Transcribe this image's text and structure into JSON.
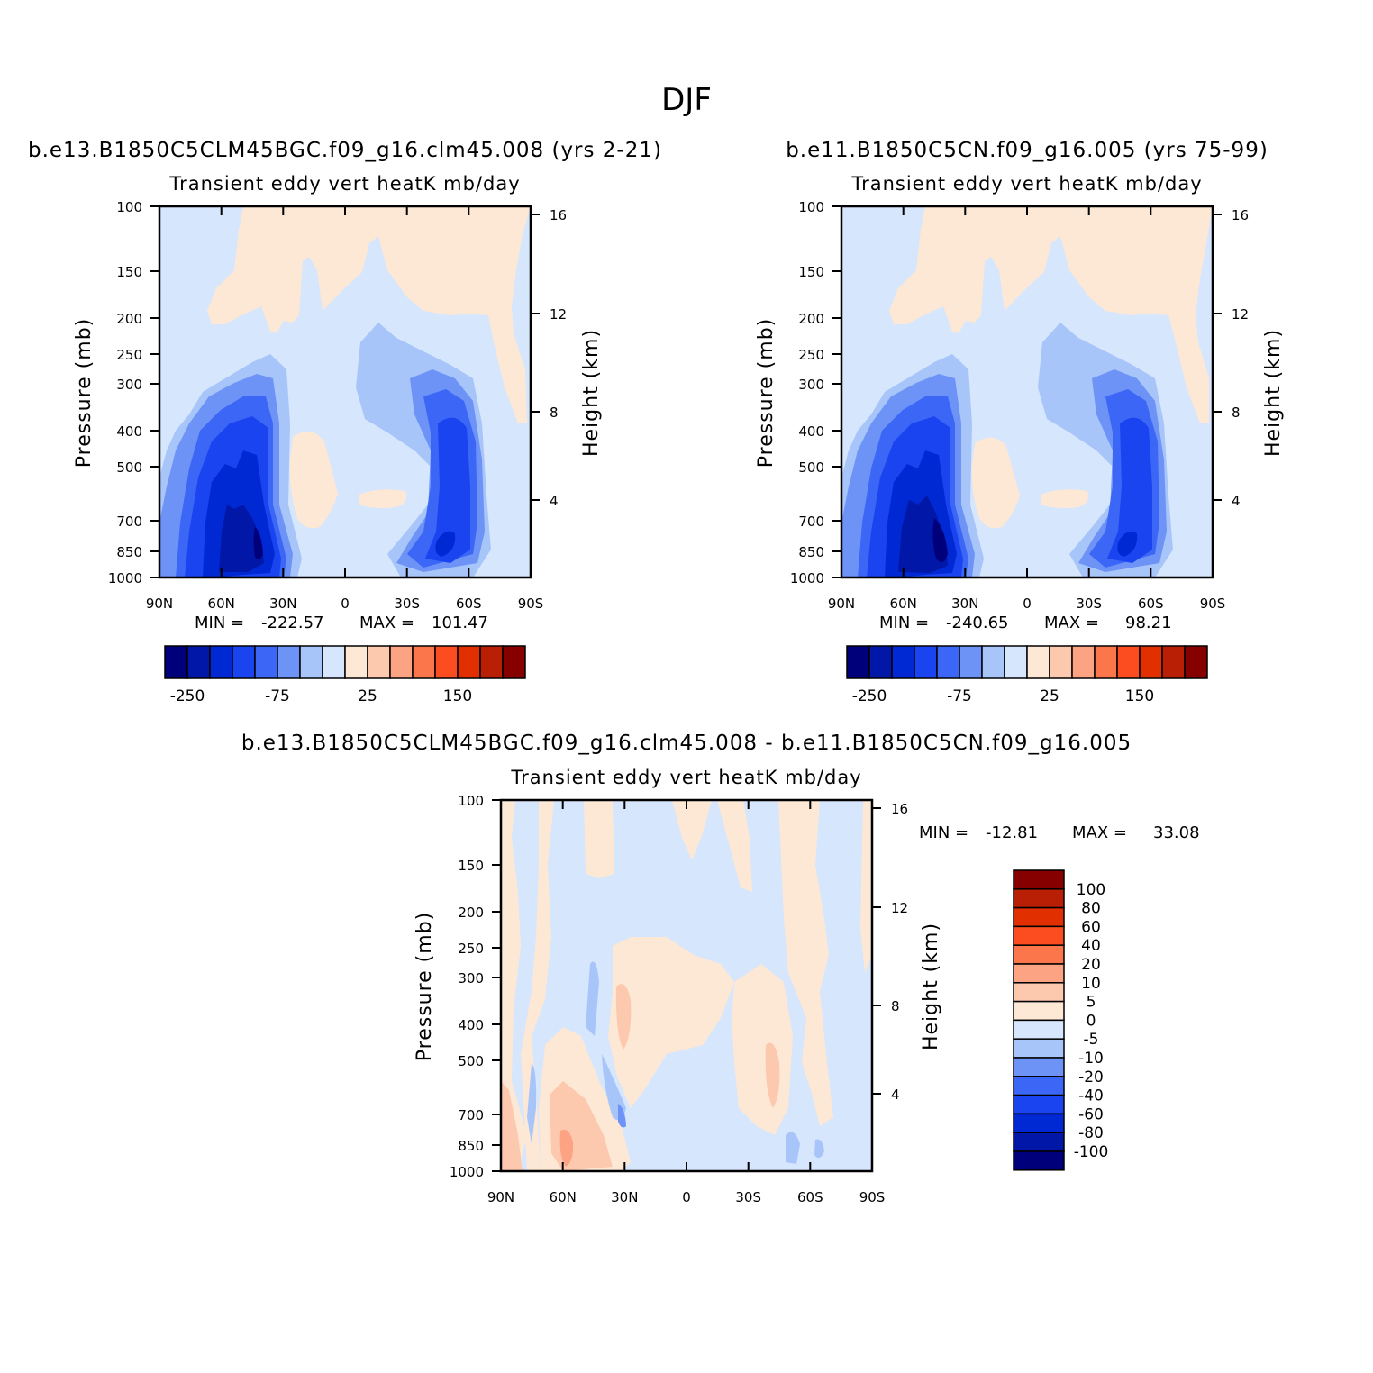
{
  "title": "DJF",
  "palette": {
    "neg": [
      "#00007a",
      "#0017a8",
      "#0029d4",
      "#1a44f0",
      "#3c66f5",
      "#6d93f7",
      "#a8c5fa",
      "#d5e6fd"
    ],
    "pos": [
      "#fde8d6",
      "#fcc9ae",
      "#fba383",
      "#fb774b",
      "#fb4d1f",
      "#e22f00",
      "#b81f05",
      "#860000"
    ]
  },
  "chart_data": [
    {
      "id": "panel1",
      "type": "heatmap",
      "subtitle": "b.e13.B1850C5CLM45BGC.f09_g16.clm45.008 (yrs 2-21)",
      "variable": "Transient eddy vert heatK mb/day",
      "ylabel": "Pressure (mb)",
      "y2label": "Height (km)",
      "xticks": [
        "90N",
        "60N",
        "30N",
        "0",
        "30S",
        "60S",
        "90S"
      ],
      "yticks": [
        "100",
        "150",
        "200",
        "250",
        "300",
        "400",
        "500",
        "700",
        "850",
        "1000"
      ],
      "y2ticks": [
        "16",
        "12",
        "8",
        "4"
      ],
      "min_label": "MIN =",
      "min_value": "-222.57",
      "max_label": "MAX =",
      "max_value": "101.47",
      "colorbar_labels": [
        "-250",
        "-75",
        "25",
        "150"
      ]
    },
    {
      "id": "panel2",
      "type": "heatmap",
      "subtitle": "b.e11.B1850C5CN.f09_g16.005 (yrs 75-99)",
      "variable": "Transient eddy vert heatK mb/day",
      "ylabel": "Pressure (mb)",
      "y2label": "Height (km)",
      "xticks": [
        "90N",
        "60N",
        "30N",
        "0",
        "30S",
        "60S",
        "90S"
      ],
      "yticks": [
        "100",
        "150",
        "200",
        "250",
        "300",
        "400",
        "500",
        "700",
        "850",
        "1000"
      ],
      "y2ticks": [
        "16",
        "12",
        "8",
        "4"
      ],
      "min_label": "MIN =",
      "min_value": "-240.65",
      "max_label": "MAX =",
      "max_value": "98.21",
      "colorbar_labels": [
        "-250",
        "-75",
        "25",
        "150"
      ]
    },
    {
      "id": "panel3",
      "type": "heatmap",
      "subtitle": "b.e13.B1850C5CLM45BGC.f09_g16.clm45.008 - b.e11.B1850C5CN.f09_g16.005",
      "variable": "Transient eddy vert heatK mb/day",
      "ylabel": "Pressure (mb)",
      "y2label": "Height (km)",
      "xticks": [
        "90N",
        "60N",
        "30N",
        "0",
        "30S",
        "60S",
        "90S"
      ],
      "yticks": [
        "100",
        "150",
        "200",
        "250",
        "300",
        "400",
        "500",
        "700",
        "850",
        "1000"
      ],
      "y2ticks": [
        "16",
        "12",
        "8",
        "4"
      ],
      "min_label": "MIN =",
      "min_value": "-12.81",
      "max_label": "MAX =",
      "max_value": "33.08",
      "colorbar_labels": [
        "100",
        "80",
        "60",
        "40",
        "20",
        "10",
        "5",
        "0",
        "-5",
        "-10",
        "-20",
        "-40",
        "-60",
        "-80",
        "-100"
      ]
    }
  ]
}
